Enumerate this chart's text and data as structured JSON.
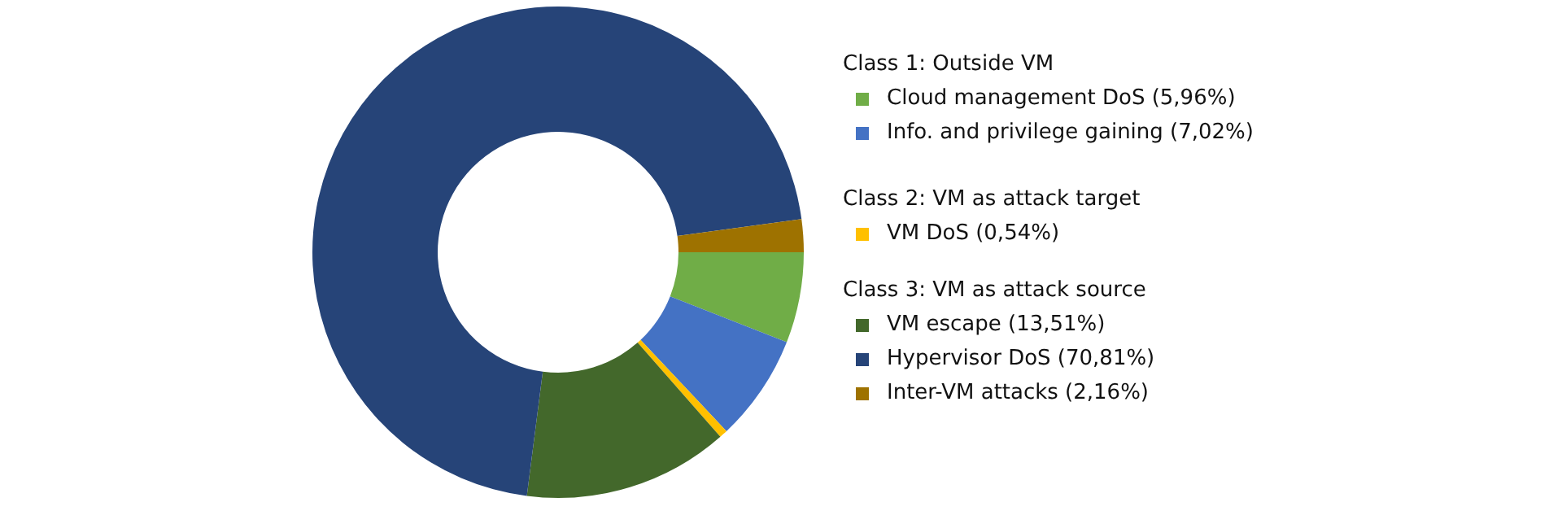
{
  "chart_data": {
    "type": "donut",
    "categories": [
      "Cloud management DoS (5,96%)",
      "Info. and privilege gaining (7,02%)",
      "VM DoS (0,54%)",
      "VM escape (13,51%)",
      "Hypervisor DoS (70,81%)",
      "Inter-VM attacks (2,16%)"
    ],
    "values": [
      5.96,
      7.02,
      0.54,
      13.51,
      70.81,
      2.16
    ],
    "colors": [
      "#70ad47",
      "#4472c4",
      "#ffc000",
      "#43682b",
      "#264478",
      "#9e7200"
    ],
    "legend": "right",
    "annotations": [
      "Class 1: Outside VM",
      "Class 2: VM as attack target",
      "Class 3: VM as attack source"
    ]
  }
}
